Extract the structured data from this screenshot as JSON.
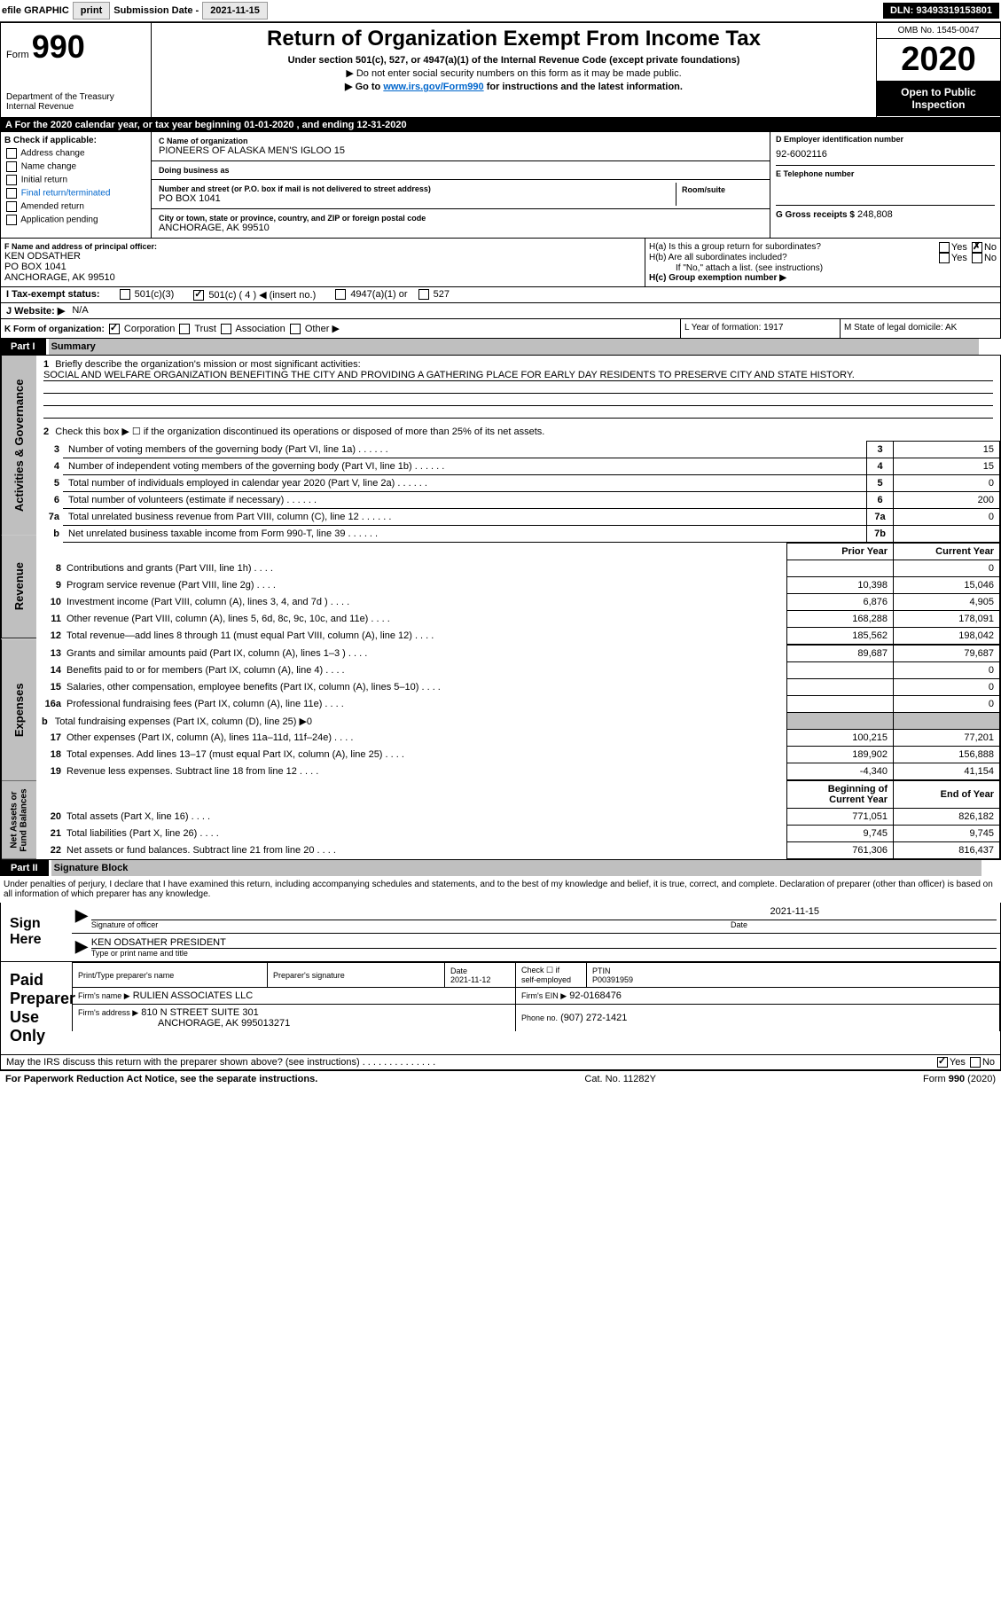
{
  "toolbar": {
    "efile": "efile GRAPHIC",
    "print": "print",
    "sub_label": "Submission Date -",
    "sub_date": "2021-11-15",
    "dln": "DLN: 93493319153801"
  },
  "header": {
    "form_label": "Form",
    "form_number": "990",
    "dept1": "Department of the Treasury",
    "dept2": "Internal Revenue",
    "title": "Return of Organization Exempt From Income Tax",
    "subtitle": "Under section 501(c), 527, or 4947(a)(1) of the Internal Revenue Code (except private foundations)",
    "note1": "▶ Do not enter social security numbers on this form as it may be made public.",
    "note2_prefix": "▶ Go to ",
    "note2_link": "www.irs.gov/Form990",
    "note2_suffix": " for instructions and the latest information.",
    "omb": "OMB No. 1545-0047",
    "year": "2020",
    "inspection": "Open to Public Inspection"
  },
  "rowA": "A For the 2020 calendar year, or tax year beginning 01-01-2020   , and ending 12-31-2020",
  "checkB": {
    "title": "B Check if applicable:",
    "items": [
      "Address change",
      "Name change",
      "Initial return",
      "Final return/terminated",
      "Amended return",
      "Application pending"
    ]
  },
  "org": {
    "name_label": "C Name of organization",
    "name": "PIONEERS OF ALASKA MEN'S IGLOO 15",
    "dba_label": "Doing business as",
    "dba": "",
    "street_label": "Number and street (or P.O. box if mail is not delivered to street address)",
    "street": "PO BOX 1041",
    "room_label": "Room/suite",
    "city_label": "City or town, state or province, country, and ZIP or foreign postal code",
    "city": "ANCHORAGE, AK  99510"
  },
  "colD": {
    "ein_label": "D Employer identification number",
    "ein": "92-6002116",
    "phone_label": "E Telephone number",
    "phone": "",
    "gross_label": "G Gross receipts $",
    "gross": "248,808"
  },
  "officer": {
    "label": "F  Name and address of principal officer:",
    "name": "KEN ODSATHER",
    "street": "PO BOX 1041",
    "city": "ANCHORAGE, AK  99510"
  },
  "colH": {
    "ha": "H(a)  Is this a group return for subordinates?",
    "hb": "H(b)  Are all subordinates included?",
    "hb_note": "If \"No,\" attach a list. (see instructions)",
    "hc": "H(c)  Group exemption number ▶"
  },
  "rowI": {
    "label": "I    Tax-exempt status:",
    "o1": "501(c)(3)",
    "o2": "501(c) ( 4 ) ◀ (insert no.)",
    "o3": "4947(a)(1) or",
    "o4": "527"
  },
  "rowJ": {
    "label": "J   Website: ▶",
    "val": "N/A"
  },
  "rowK": {
    "label": "K Form of organization:",
    "opts": [
      "Corporation",
      "Trust",
      "Association",
      "Other ▶"
    ]
  },
  "rowLM": {
    "l": "L Year of formation: 1917",
    "m": "M State of legal domicile: AK"
  },
  "part1": {
    "label": "Part I",
    "title": "Summary",
    "gutters": [
      "Activities & Governance",
      "Revenue",
      "Expenses",
      "Net Assets or Fund Balances"
    ],
    "q1_label": "1",
    "q1": "Briefly describe the organization's mission or most significant activities:",
    "q1_ans": "SOCIAL AND WELFARE ORGANIZATION BENEFITING THE CITY AND PROVIDING A GATHERING PLACE FOR EARLY DAY RESIDENTS TO PRESERVE CITY AND STATE HISTORY.",
    "q2": "Check this box ▶ ☐ if the organization discontinued its operations or disposed of more than 25% of its net assets.",
    "lines_gov": [
      {
        "n": "3",
        "t": "Number of voting members of the governing body (Part VI, line 1a)",
        "lbl": "3",
        "v": "15"
      },
      {
        "n": "4",
        "t": "Number of independent voting members of the governing body (Part VI, line 1b)",
        "lbl": "4",
        "v": "15"
      },
      {
        "n": "5",
        "t": "Total number of individuals employed in calendar year 2020 (Part V, line 2a)",
        "lbl": "5",
        "v": "0"
      },
      {
        "n": "6",
        "t": "Total number of volunteers (estimate if necessary)",
        "lbl": "6",
        "v": "200"
      },
      {
        "n": "7a",
        "t": "Total unrelated business revenue from Part VIII, column (C), line 12",
        "lbl": "7a",
        "v": "0"
      },
      {
        "n": "b",
        "t": "Net unrelated business taxable income from Form 990-T, line 39",
        "lbl": "7b",
        "v": ""
      }
    ],
    "col_hdrs": {
      "prior": "Prior Year",
      "current": "Current Year"
    },
    "lines_rev": [
      {
        "n": "8",
        "t": "Contributions and grants (Part VIII, line 1h)",
        "p": "",
        "c": "0"
      },
      {
        "n": "9",
        "t": "Program service revenue (Part VIII, line 2g)",
        "p": "10,398",
        "c": "15,046"
      },
      {
        "n": "10",
        "t": "Investment income (Part VIII, column (A), lines 3, 4, and 7d )",
        "p": "6,876",
        "c": "4,905"
      },
      {
        "n": "11",
        "t": "Other revenue (Part VIII, column (A), lines 5, 6d, 8c, 9c, 10c, and 11e)",
        "p": "168,288",
        "c": "178,091"
      },
      {
        "n": "12",
        "t": "Total revenue—add lines 8 through 11 (must equal Part VIII, column (A), line 12)",
        "p": "185,562",
        "c": "198,042"
      }
    ],
    "lines_exp": [
      {
        "n": "13",
        "t": "Grants and similar amounts paid (Part IX, column (A), lines 1–3 )",
        "p": "89,687",
        "c": "79,687"
      },
      {
        "n": "14",
        "t": "Benefits paid to or for members (Part IX, column (A), line 4)",
        "p": "",
        "c": "0"
      },
      {
        "n": "15",
        "t": "Salaries, other compensation, employee benefits (Part IX, column (A), lines 5–10)",
        "p": "",
        "c": "0"
      },
      {
        "n": "16a",
        "t": "Professional fundraising fees (Part IX, column (A), line 11e)",
        "p": "",
        "c": "0"
      },
      {
        "n": "b",
        "t": "Total fundraising expenses (Part IX, column (D), line 25) ▶0",
        "gray": true
      },
      {
        "n": "17",
        "t": "Other expenses (Part IX, column (A), lines 11a–11d, 11f–24e)",
        "p": "100,215",
        "c": "77,201"
      },
      {
        "n": "18",
        "t": "Total expenses. Add lines 13–17 (must equal Part IX, column (A), line 25)",
        "p": "189,902",
        "c": "156,888"
      },
      {
        "n": "19",
        "t": "Revenue less expenses. Subtract line 18 from line 12",
        "p": "-4,340",
        "c": "41,154"
      }
    ],
    "col_hdrs2": {
      "begin": "Beginning of Current Year",
      "end": "End of Year"
    },
    "lines_net": [
      {
        "n": "20",
        "t": "Total assets (Part X, line 16)",
        "p": "771,051",
        "c": "826,182"
      },
      {
        "n": "21",
        "t": "Total liabilities (Part X, line 26)",
        "p": "9,745",
        "c": "9,745"
      },
      {
        "n": "22",
        "t": "Net assets or fund balances. Subtract line 21 from line 20",
        "p": "761,306",
        "c": "816,437"
      }
    ]
  },
  "part2": {
    "label": "Part II",
    "title": "Signature Block",
    "disclaimer": "Under penalties of perjury, I declare that I have examined this return, including accompanying schedules and statements, and to the best of my knowledge and belief, it is true, correct, and complete. Declaration of preparer (other than officer) is based on all information of which preparer has any knowledge."
  },
  "sign": {
    "title": "Sign Here",
    "sig_label": "Signature of officer",
    "date": "2021-11-15",
    "date_label": "Date",
    "name": "KEN ODSATHER PRESIDENT",
    "name_label": "Type or print name and title"
  },
  "prep": {
    "title": "Paid Preparer Use Only",
    "h1": "Print/Type preparer's name",
    "h2": "Preparer's signature",
    "h3": "Date",
    "date": "2021-11-12",
    "h4_a": "Check ☐ if",
    "h4_b": "self-employed",
    "h5": "PTIN",
    "ptin": "P00391959",
    "firm_name_label": "Firm's name   ▶",
    "firm_name": "RULIEN ASSOCIATES LLC",
    "firm_ein_label": "Firm's EIN ▶",
    "firm_ein": "92-0168476",
    "firm_addr_label": "Firm's address ▶",
    "firm_addr1": "810 N STREET SUITE 301",
    "firm_addr2": "ANCHORAGE, AK  995013271",
    "phone_label": "Phone no.",
    "phone": "(907) 272-1421"
  },
  "discuss": "May the IRS discuss this return with the preparer shown above? (see instructions)",
  "footer": {
    "left": "For Paperwork Reduction Act Notice, see the separate instructions.",
    "mid": "Cat. No. 11282Y",
    "right_a": "Form ",
    "right_b": "990",
    "right_c": " (2020)"
  }
}
